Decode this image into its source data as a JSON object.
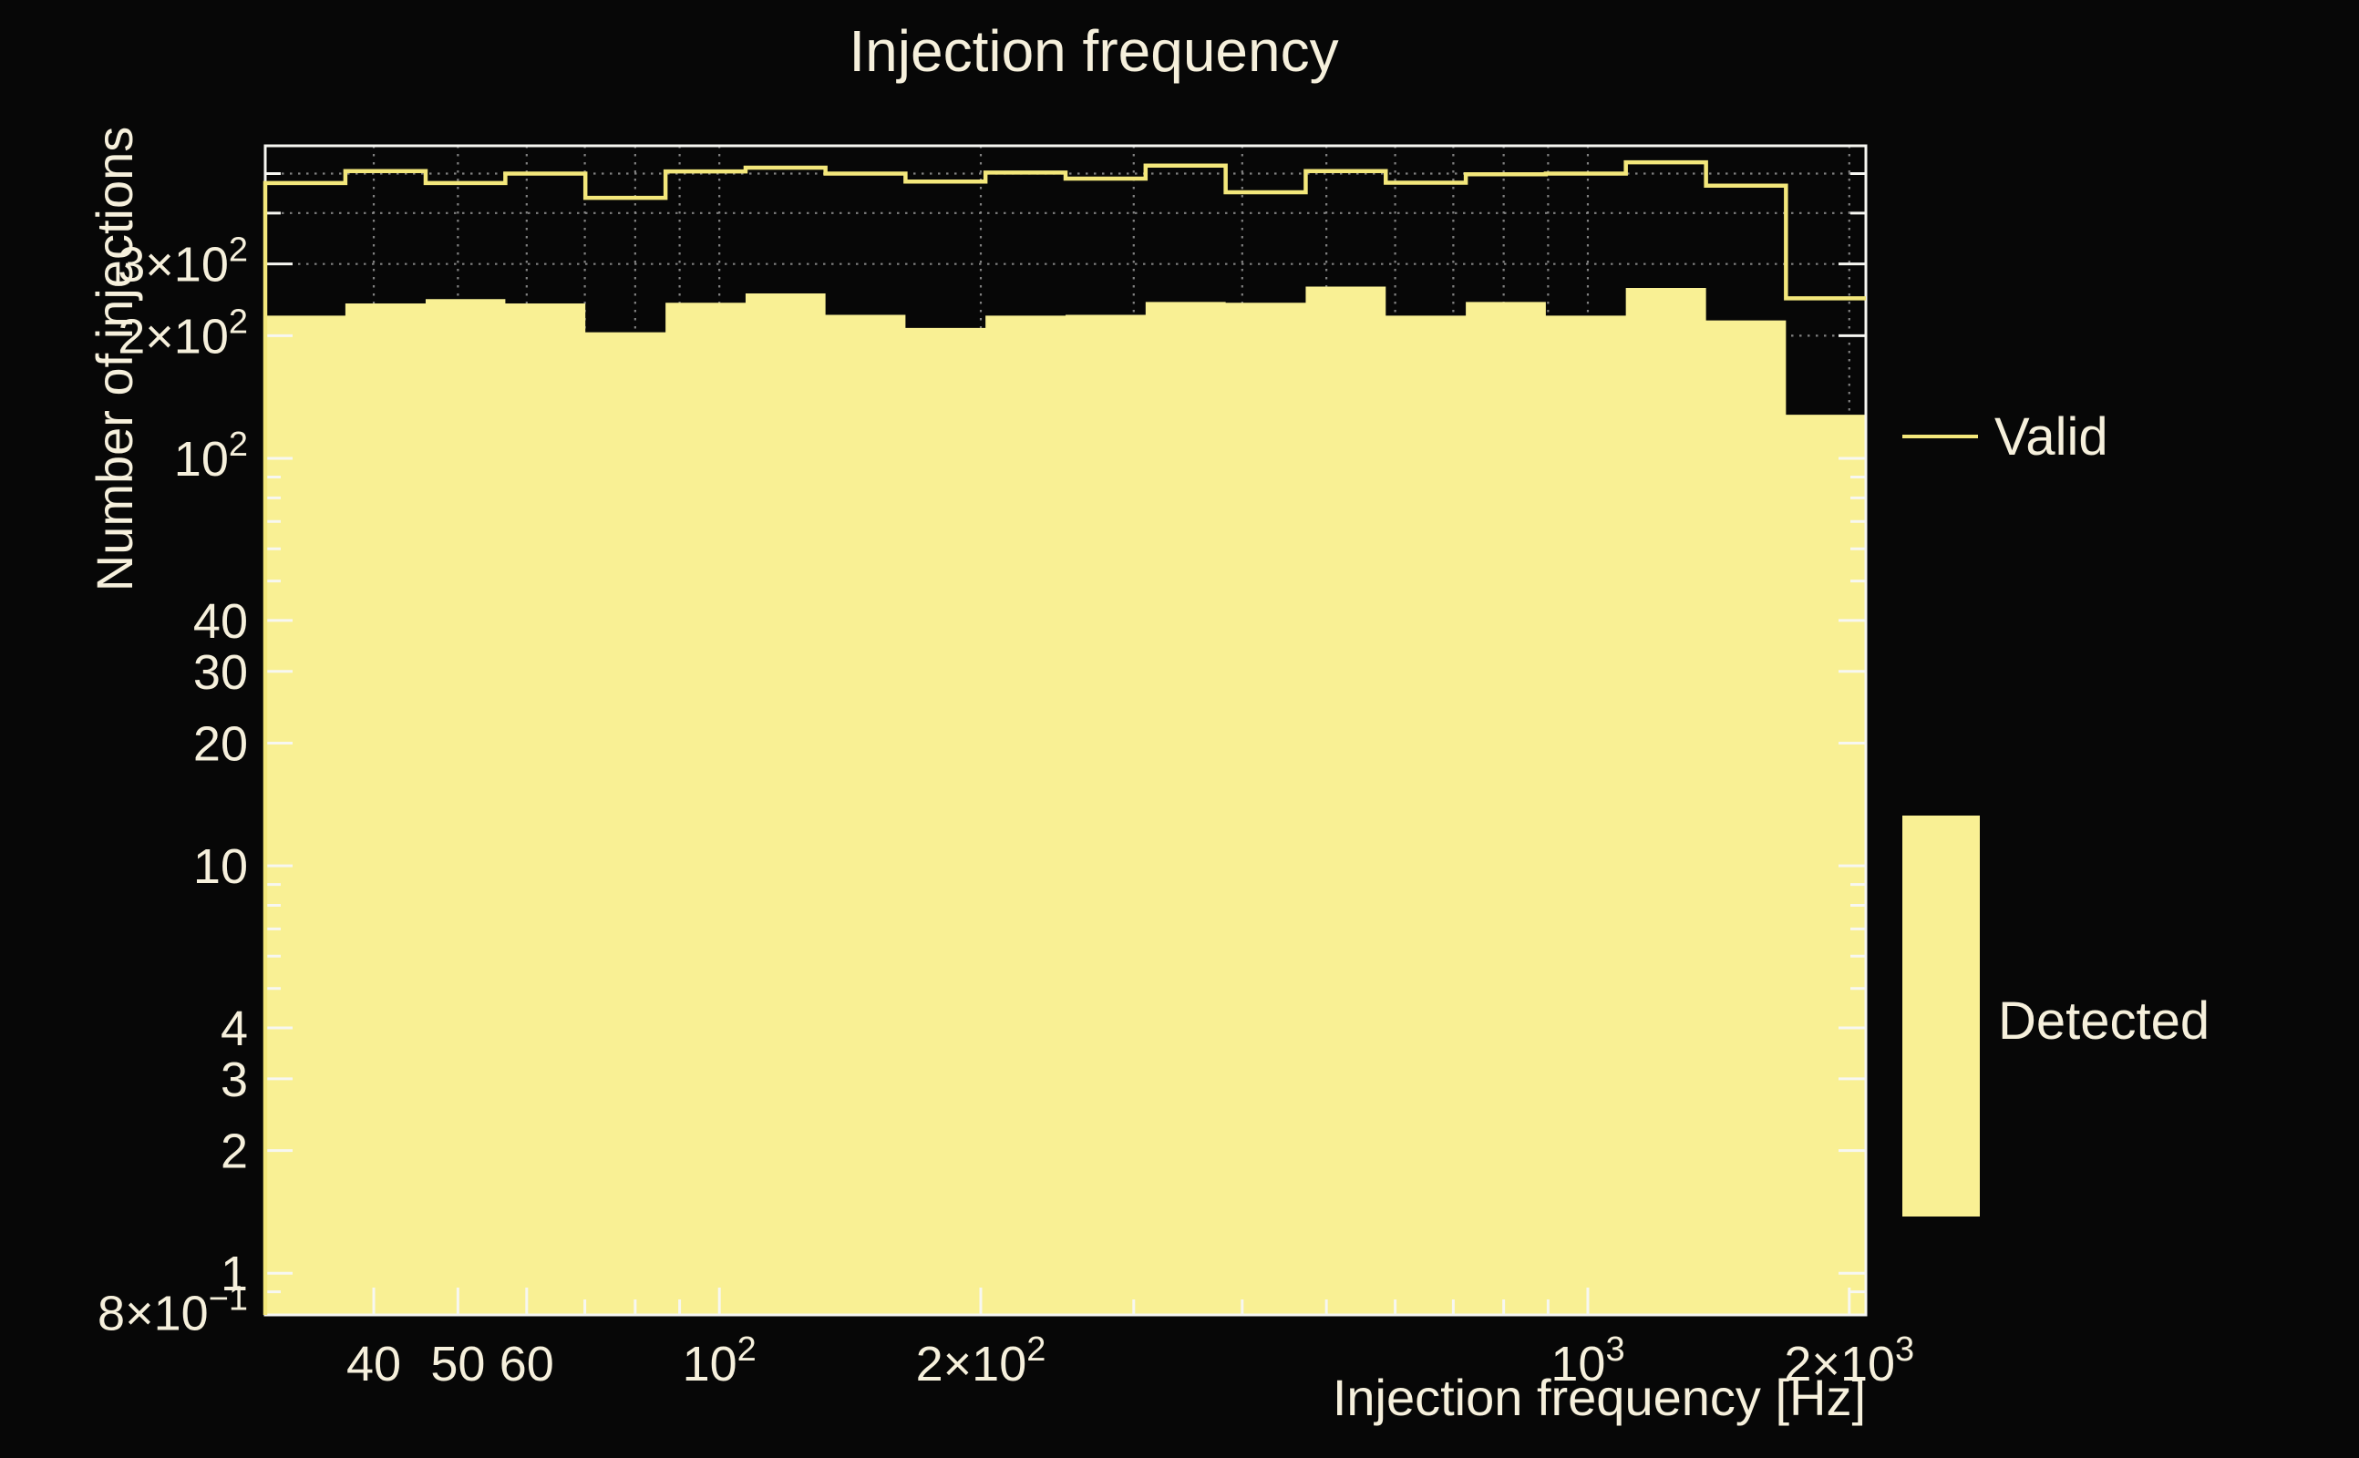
{
  "title": "Injection frequency",
  "colors": {
    "background": "#070707",
    "text": "#f6f0dc",
    "frame": "#f7f7f2",
    "grid": "#8e8e8e",
    "valid_line": "#f3e77b",
    "detected_fill": "#f9f094"
  },
  "legend": {
    "items": [
      {
        "label": "Valid",
        "marker": "line"
      },
      {
        "label": "Detected",
        "marker": "patch"
      }
    ]
  },
  "chart_data": {
    "type": "bar",
    "subtype": "step-histogram-log-log",
    "title": "Injection frequency",
    "xlabel": "Injection frequency [Hz]",
    "ylabel": "Number of injections",
    "xscale": "log",
    "yscale": "log",
    "xlim": [
      30,
      2090
    ],
    "ylim": [
      0.79,
      585
    ],
    "grid": "minor-dotted",
    "legend_position": "right",
    "bin_edges_hz": [
      30,
      37.1,
      45.9,
      56.7,
      70.1,
      86.7,
      107.2,
      132.5,
      163.8,
      202.5,
      250.4,
      309.6,
      382.8,
      473.3,
      585.2,
      723.6,
      894.6,
      1106,
      1368,
      1691,
      2090
    ],
    "series": [
      {
        "name": "Valid",
        "style": "line",
        "values": [
          474,
          507,
          474,
          500,
          436,
          506,
          517,
          500,
          478,
          503,
          486,
          523,
          450,
          507,
          475,
          498,
          500,
          533,
          467,
          247
        ]
      },
      {
        "name": "Detected",
        "style": "fill",
        "values": [
          224,
          240,
          246,
          240,
          204,
          241,
          254,
          225,
          209,
          224,
          225,
          242,
          241,
          264,
          224,
          242,
          224,
          262,
          218,
          128
        ]
      }
    ],
    "xticks": {
      "labeled": [
        {
          "v": 40,
          "t": "40"
        },
        {
          "v": 50,
          "t": "50"
        },
        {
          "v": 60,
          "t": "60"
        },
        {
          "v": 100,
          "t": "10^2"
        },
        {
          "v": 200,
          "t": "2×10^2"
        },
        {
          "v": 1000,
          "t": "10^3"
        },
        {
          "v": 2000,
          "t": "2×10^3"
        }
      ],
      "minor": [
        40,
        50,
        60,
        70,
        80,
        90,
        100,
        200,
        300,
        400,
        500,
        600,
        700,
        800,
        900,
        1000,
        2000
      ]
    },
    "yticks": {
      "labeled": [
        {
          "v": 300,
          "t": "3×10^2"
        },
        {
          "v": 200,
          "t": "2×10^2"
        },
        {
          "v": 100,
          "t": "10^2"
        },
        {
          "v": 40,
          "t": "40"
        },
        {
          "v": 30,
          "t": "30"
        },
        {
          "v": 20,
          "t": "20"
        },
        {
          "v": 10,
          "t": "10"
        },
        {
          "v": 4,
          "t": "4"
        },
        {
          "v": 3,
          "t": "3"
        },
        {
          "v": 2,
          "t": "2"
        },
        {
          "v": 1,
          "t": "1"
        },
        {
          "v": 0.8,
          "t": "8×10^-1"
        }
      ],
      "minor": [
        0.9,
        1,
        2,
        3,
        4,
        5,
        6,
        7,
        8,
        9,
        10,
        20,
        30,
        40,
        50,
        60,
        70,
        80,
        90,
        100,
        200,
        300,
        400,
        500
      ]
    },
    "gridlines": {
      "x": [
        40,
        50,
        60,
        70,
        80,
        90,
        100,
        200,
        300,
        400,
        500,
        600,
        700,
        800,
        900,
        1000,
        2000
      ],
      "y": [
        100,
        200,
        300,
        400,
        500
      ]
    }
  }
}
